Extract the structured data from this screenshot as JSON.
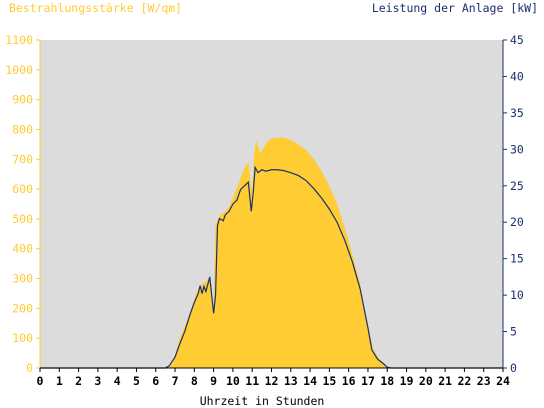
{
  "chart_data": {
    "type": "area",
    "title_left": "Bestrahlungsstärke [W/qm]",
    "title_right": "Leistung der Anlage [kW]",
    "xlabel": "Uhrzeit in Stunden",
    "xlim": [
      0,
      24
    ],
    "x_ticks": [
      "0",
      "1",
      "2",
      "3",
      "4",
      "5",
      "6",
      "7",
      "8",
      "9",
      "10",
      "11",
      "12",
      "13",
      "14",
      "15",
      "16",
      "17",
      "18",
      "19",
      "20",
      "21",
      "22",
      "23",
      "24"
    ],
    "y_left": {
      "lim": [
        0,
        1100
      ],
      "ticks": [
        "0",
        "100",
        "200",
        "300",
        "400",
        "500",
        "600",
        "700",
        "800",
        "900",
        "1000",
        "1100"
      ]
    },
    "y_right": {
      "lim": [
        0,
        45
      ],
      "ticks": [
        "0",
        "5",
        "10",
        "15",
        "20",
        "25",
        "30",
        "35",
        "40",
        "45"
      ]
    },
    "grid": false,
    "colors": {
      "plot_background": "#dcdcdc",
      "irradiance_fill": "#ffcc33",
      "power_line": "#1a2f6e",
      "left_axis": "#ffcc33",
      "right_axis": "#1a2f6e"
    },
    "series": [
      {
        "name": "Bestrahlungsstärke [W/qm]",
        "axis": "left",
        "kind": "area",
        "points": [
          [
            0,
            0
          ],
          [
            6.5,
            0
          ],
          [
            6.8,
            10
          ],
          [
            7.0,
            40
          ],
          [
            7.2,
            90
          ],
          [
            7.5,
            140
          ],
          [
            7.8,
            190
          ],
          [
            8.0,
            230
          ],
          [
            8.2,
            265
          ],
          [
            8.4,
            280
          ],
          [
            8.6,
            290
          ],
          [
            8.8,
            300
          ],
          [
            9.0,
            195
          ],
          [
            9.1,
            480
          ],
          [
            9.3,
            510
          ],
          [
            9.5,
            520
          ],
          [
            9.8,
            540
          ],
          [
            10.0,
            570
          ],
          [
            10.3,
            620
          ],
          [
            10.6,
            670
          ],
          [
            10.8,
            690
          ],
          [
            11.0,
            580
          ],
          [
            11.1,
            720
          ],
          [
            11.2,
            765
          ],
          [
            11.4,
            720
          ],
          [
            11.6,
            740
          ],
          [
            11.8,
            760
          ],
          [
            12.0,
            770
          ],
          [
            12.3,
            772
          ],
          [
            12.6,
            772
          ],
          [
            13.0,
            765
          ],
          [
            13.4,
            750
          ],
          [
            13.8,
            730
          ],
          [
            14.2,
            700
          ],
          [
            14.6,
            660
          ],
          [
            15.0,
            610
          ],
          [
            15.4,
            550
          ],
          [
            15.8,
            470
          ],
          [
            16.2,
            380
          ],
          [
            16.6,
            280
          ],
          [
            17.0,
            140
          ],
          [
            17.3,
            60
          ],
          [
            17.6,
            30
          ],
          [
            18.0,
            5
          ],
          [
            18.3,
            0
          ],
          [
            24,
            0
          ]
        ]
      },
      {
        "name": "Leistung der Anlage [kW]",
        "axis": "right",
        "kind": "line",
        "points": [
          [
            0,
            0
          ],
          [
            6.5,
            0
          ],
          [
            6.7,
            0.3
          ],
          [
            7.0,
            1.5
          ],
          [
            7.2,
            3
          ],
          [
            7.5,
            5
          ],
          [
            7.8,
            7.5
          ],
          [
            8.0,
            9
          ],
          [
            8.2,
            10.2
          ],
          [
            8.3,
            11.3
          ],
          [
            8.4,
            10.2
          ],
          [
            8.5,
            11.2
          ],
          [
            8.6,
            10.5
          ],
          [
            8.7,
            11.5
          ],
          [
            8.8,
            12.5
          ],
          [
            9.0,
            7.5
          ],
          [
            9.1,
            10
          ],
          [
            9.2,
            19.5
          ],
          [
            9.3,
            20.5
          ],
          [
            9.5,
            20.2
          ],
          [
            9.6,
            21
          ],
          [
            9.8,
            21.5
          ],
          [
            10.0,
            22.5
          ],
          [
            10.2,
            23
          ],
          [
            10.4,
            24.5
          ],
          [
            10.6,
            25
          ],
          [
            10.8,
            25.5
          ],
          [
            10.95,
            21.5
          ],
          [
            11.05,
            24
          ],
          [
            11.15,
            27.5
          ],
          [
            11.3,
            26.8
          ],
          [
            11.5,
            27.2
          ],
          [
            11.7,
            27
          ],
          [
            12.0,
            27.2
          ],
          [
            12.3,
            27.2
          ],
          [
            12.6,
            27.1
          ],
          [
            13.0,
            26.8
          ],
          [
            13.4,
            26.4
          ],
          [
            13.8,
            25.7
          ],
          [
            14.2,
            24.6
          ],
          [
            14.6,
            23.3
          ],
          [
            15.0,
            21.8
          ],
          [
            15.4,
            20
          ],
          [
            15.8,
            17.5
          ],
          [
            16.2,
            14.5
          ],
          [
            16.6,
            10.8
          ],
          [
            17.0,
            5.5
          ],
          [
            17.2,
            2.5
          ],
          [
            17.5,
            1.2
          ],
          [
            17.8,
            0.6
          ],
          [
            18.0,
            0.1
          ],
          [
            18.2,
            0
          ],
          [
            24,
            0
          ]
        ]
      }
    ]
  }
}
